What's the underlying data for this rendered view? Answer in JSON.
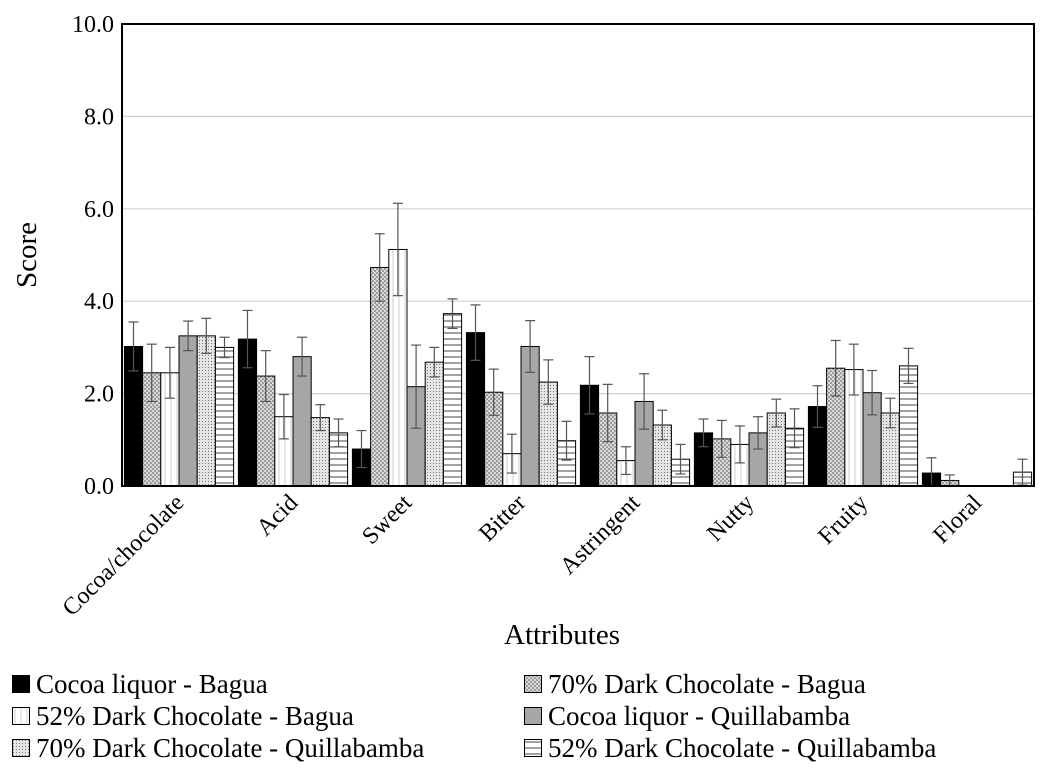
{
  "chart_data": {
    "type": "bar",
    "xlabel": "Attributes",
    "ylabel": "Score",
    "ylim": [
      0,
      10
    ],
    "yticks": [
      "0.0",
      "2.0",
      "4.0",
      "6.0",
      "8.0",
      "10.0"
    ],
    "grid": true,
    "legend_position": "bottom",
    "categories": [
      "Cocoa/chocolate",
      "Acid",
      "Sweet",
      "Bitter",
      "Astringent",
      "Nutty",
      "Fruity",
      "Floral"
    ],
    "series": [
      {
        "name": "Cocoa liquor - Bagua",
        "fill": "#000000",
        "pattern": "solid",
        "values": [
          3.02,
          3.18,
          0.8,
          3.32,
          2.18,
          1.15,
          1.72,
          0.28
        ],
        "errors": [
          0.53,
          0.62,
          0.4,
          0.6,
          0.62,
          0.3,
          0.45,
          0.33
        ]
      },
      {
        "name": "70% Dark Chocolate - Bagua",
        "fill": "#d9d9d9",
        "pattern": "dots",
        "values": [
          2.45,
          2.38,
          4.73,
          2.03,
          1.58,
          1.02,
          2.55,
          0.12
        ],
        "errors": [
          0.62,
          0.55,
          0.73,
          0.5,
          0.62,
          0.4,
          0.6,
          0.12
        ]
      },
      {
        "name": "52% Dark Chocolate - Bagua",
        "fill": "#ffffff",
        "pattern": "vlines",
        "values": [
          2.45,
          1.5,
          5.12,
          0.7,
          0.55,
          0.9,
          2.52,
          0.0
        ],
        "errors": [
          0.55,
          0.48,
          1.0,
          0.42,
          0.3,
          0.4,
          0.55,
          0.0
        ]
      },
      {
        "name": "Cocoa liquor - Quillabamba",
        "fill": "#a6a6a6",
        "pattern": "solid",
        "values": [
          3.25,
          2.8,
          2.15,
          3.02,
          1.83,
          1.15,
          2.02,
          0.0
        ],
        "errors": [
          0.32,
          0.42,
          0.9,
          0.56,
          0.6,
          0.35,
          0.48,
          0.0
        ]
      },
      {
        "name": "70% Dark Chocolate - Quillabamba",
        "fill": "#d9d9d9",
        "pattern": "fine-dots",
        "values": [
          3.25,
          1.48,
          2.68,
          2.25,
          1.32,
          1.58,
          1.58,
          0.0
        ],
        "errors": [
          0.38,
          0.28,
          0.32,
          0.48,
          0.32,
          0.3,
          0.32,
          0.0
        ]
      },
      {
        "name": "52% Dark Chocolate - Quillabamba",
        "fill": "#ffffff",
        "pattern": "hlines",
        "values": [
          3.0,
          1.15,
          3.73,
          0.98,
          0.58,
          1.25,
          2.6,
          0.3
        ],
        "errors": [
          0.22,
          0.3,
          0.32,
          0.42,
          0.32,
          0.42,
          0.38,
          0.28
        ]
      }
    ]
  }
}
